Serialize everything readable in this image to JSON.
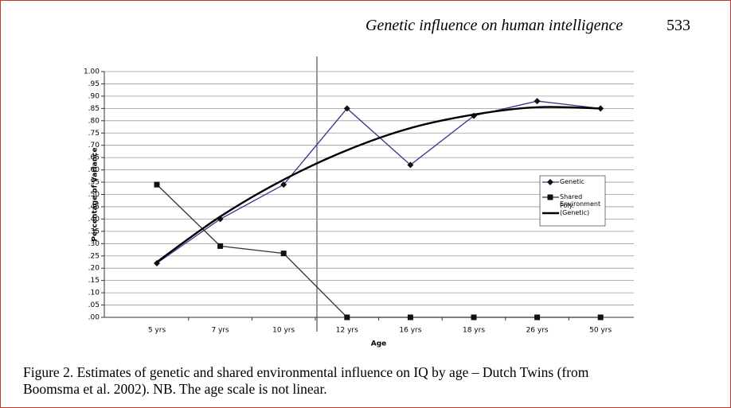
{
  "header": {
    "title": "Genetic influence on human intelligence",
    "page": "533"
  },
  "chart_data": {
    "type": "line",
    "x_label": "Age",
    "y_label": "Percentage of Variance",
    "categories": [
      "5 yrs",
      "7 yrs",
      "10 yrs",
      "12 yrs",
      "16 yrs",
      "18 yrs",
      "26 yrs",
      "50 yrs"
    ],
    "series": [
      {
        "name": "Genetic",
        "color": "#34348a",
        "marker": "diamond",
        "values": [
          0.22,
          0.4,
          0.54,
          0.85,
          0.62,
          0.82,
          0.88,
          0.85
        ]
      },
      {
        "name": "Shared Environment",
        "color": "#333333",
        "marker": "square",
        "values": [
          0.54,
          0.29,
          0.26,
          0,
          0,
          0,
          0,
          0
        ]
      },
      {
        "name": "Poly. (Genetic)",
        "color": "#000000",
        "marker": "none",
        "smooth": true,
        "values": [
          0.225,
          0.41,
          0.56,
          0.68,
          0.77,
          0.825,
          0.855,
          0.85
        ]
      }
    ],
    "ylim": [
      0,
      1
    ],
    "yticks": [
      {
        "value": 0,
        "label": ".00"
      },
      {
        "value": 0.05,
        "label": ".05"
      },
      {
        "value": 0.1,
        "label": ".10"
      },
      {
        "value": 0.15,
        "label": ".15"
      },
      {
        "value": 0.2,
        "label": ".20"
      },
      {
        "value": 0.25,
        "label": ".25"
      },
      {
        "value": 0.3,
        "label": ".30"
      },
      {
        "value": 0.35,
        "label": ".35"
      },
      {
        "value": 0.4,
        "label": ".40"
      },
      {
        "value": 0.45,
        "label": ".45"
      },
      {
        "value": 0.5,
        "label": ".50"
      },
      {
        "value": 0.55,
        "label": ".55"
      },
      {
        "value": 0.6,
        "label": ".60"
      },
      {
        "value": 0.65,
        "label": ".65"
      },
      {
        "value": 0.7,
        "label": ".70"
      },
      {
        "value": 0.75,
        "label": ".75"
      },
      {
        "value": 0.8,
        "label": ".80"
      },
      {
        "value": 0.85,
        "label": ".85"
      },
      {
        "value": 0.9,
        "label": ".90"
      },
      {
        "value": 0.95,
        "label": ".95"
      },
      {
        "value": 1,
        "label": "1.00"
      }
    ],
    "grid": true,
    "legend": "right"
  },
  "caption": [
    "Figure 2.  Estimates of genetic and shared environmental influence on IQ by age – Dutch Twins (from",
    "Boomsma et al. 2002). NB. The age scale is not linear."
  ]
}
